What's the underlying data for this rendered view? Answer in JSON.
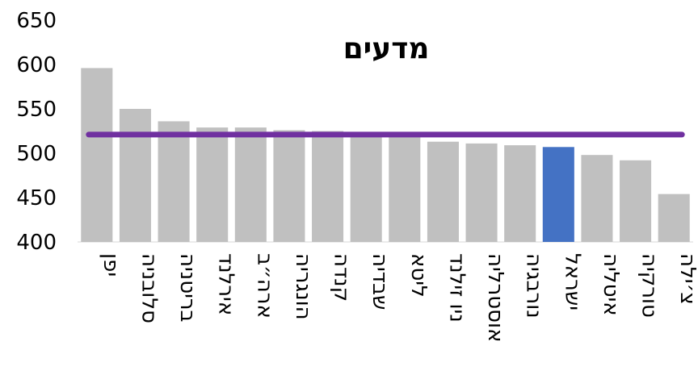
{
  "chart_data": {
    "type": "bar",
    "title": "מדעים",
    "categories": [
      "יפן",
      "סלובניה",
      "בריטניה",
      "אירלנד",
      "ארה״ב",
      "הונגריה",
      "קנדה",
      "שבדיה",
      "ליטא",
      "ניו זילנד",
      "אוסטרליה",
      "נורבגיה",
      "ישראל",
      "איטליה",
      "טורקיה",
      "צ׳ילה"
    ],
    "values": [
      596,
      550,
      536,
      529,
      529,
      526,
      525,
      521,
      519,
      513,
      511,
      509,
      507,
      498,
      492,
      454
    ],
    "highlight_category": "ישראל",
    "reference_line": 521,
    "ylim": [
      400,
      650
    ],
    "yticks": [
      400,
      450,
      500,
      550,
      600,
      650
    ],
    "grid": false,
    "colors": {
      "bar": "#c0c0c0",
      "highlight": "#4472c4",
      "reference_line": "#7030a0"
    }
  }
}
